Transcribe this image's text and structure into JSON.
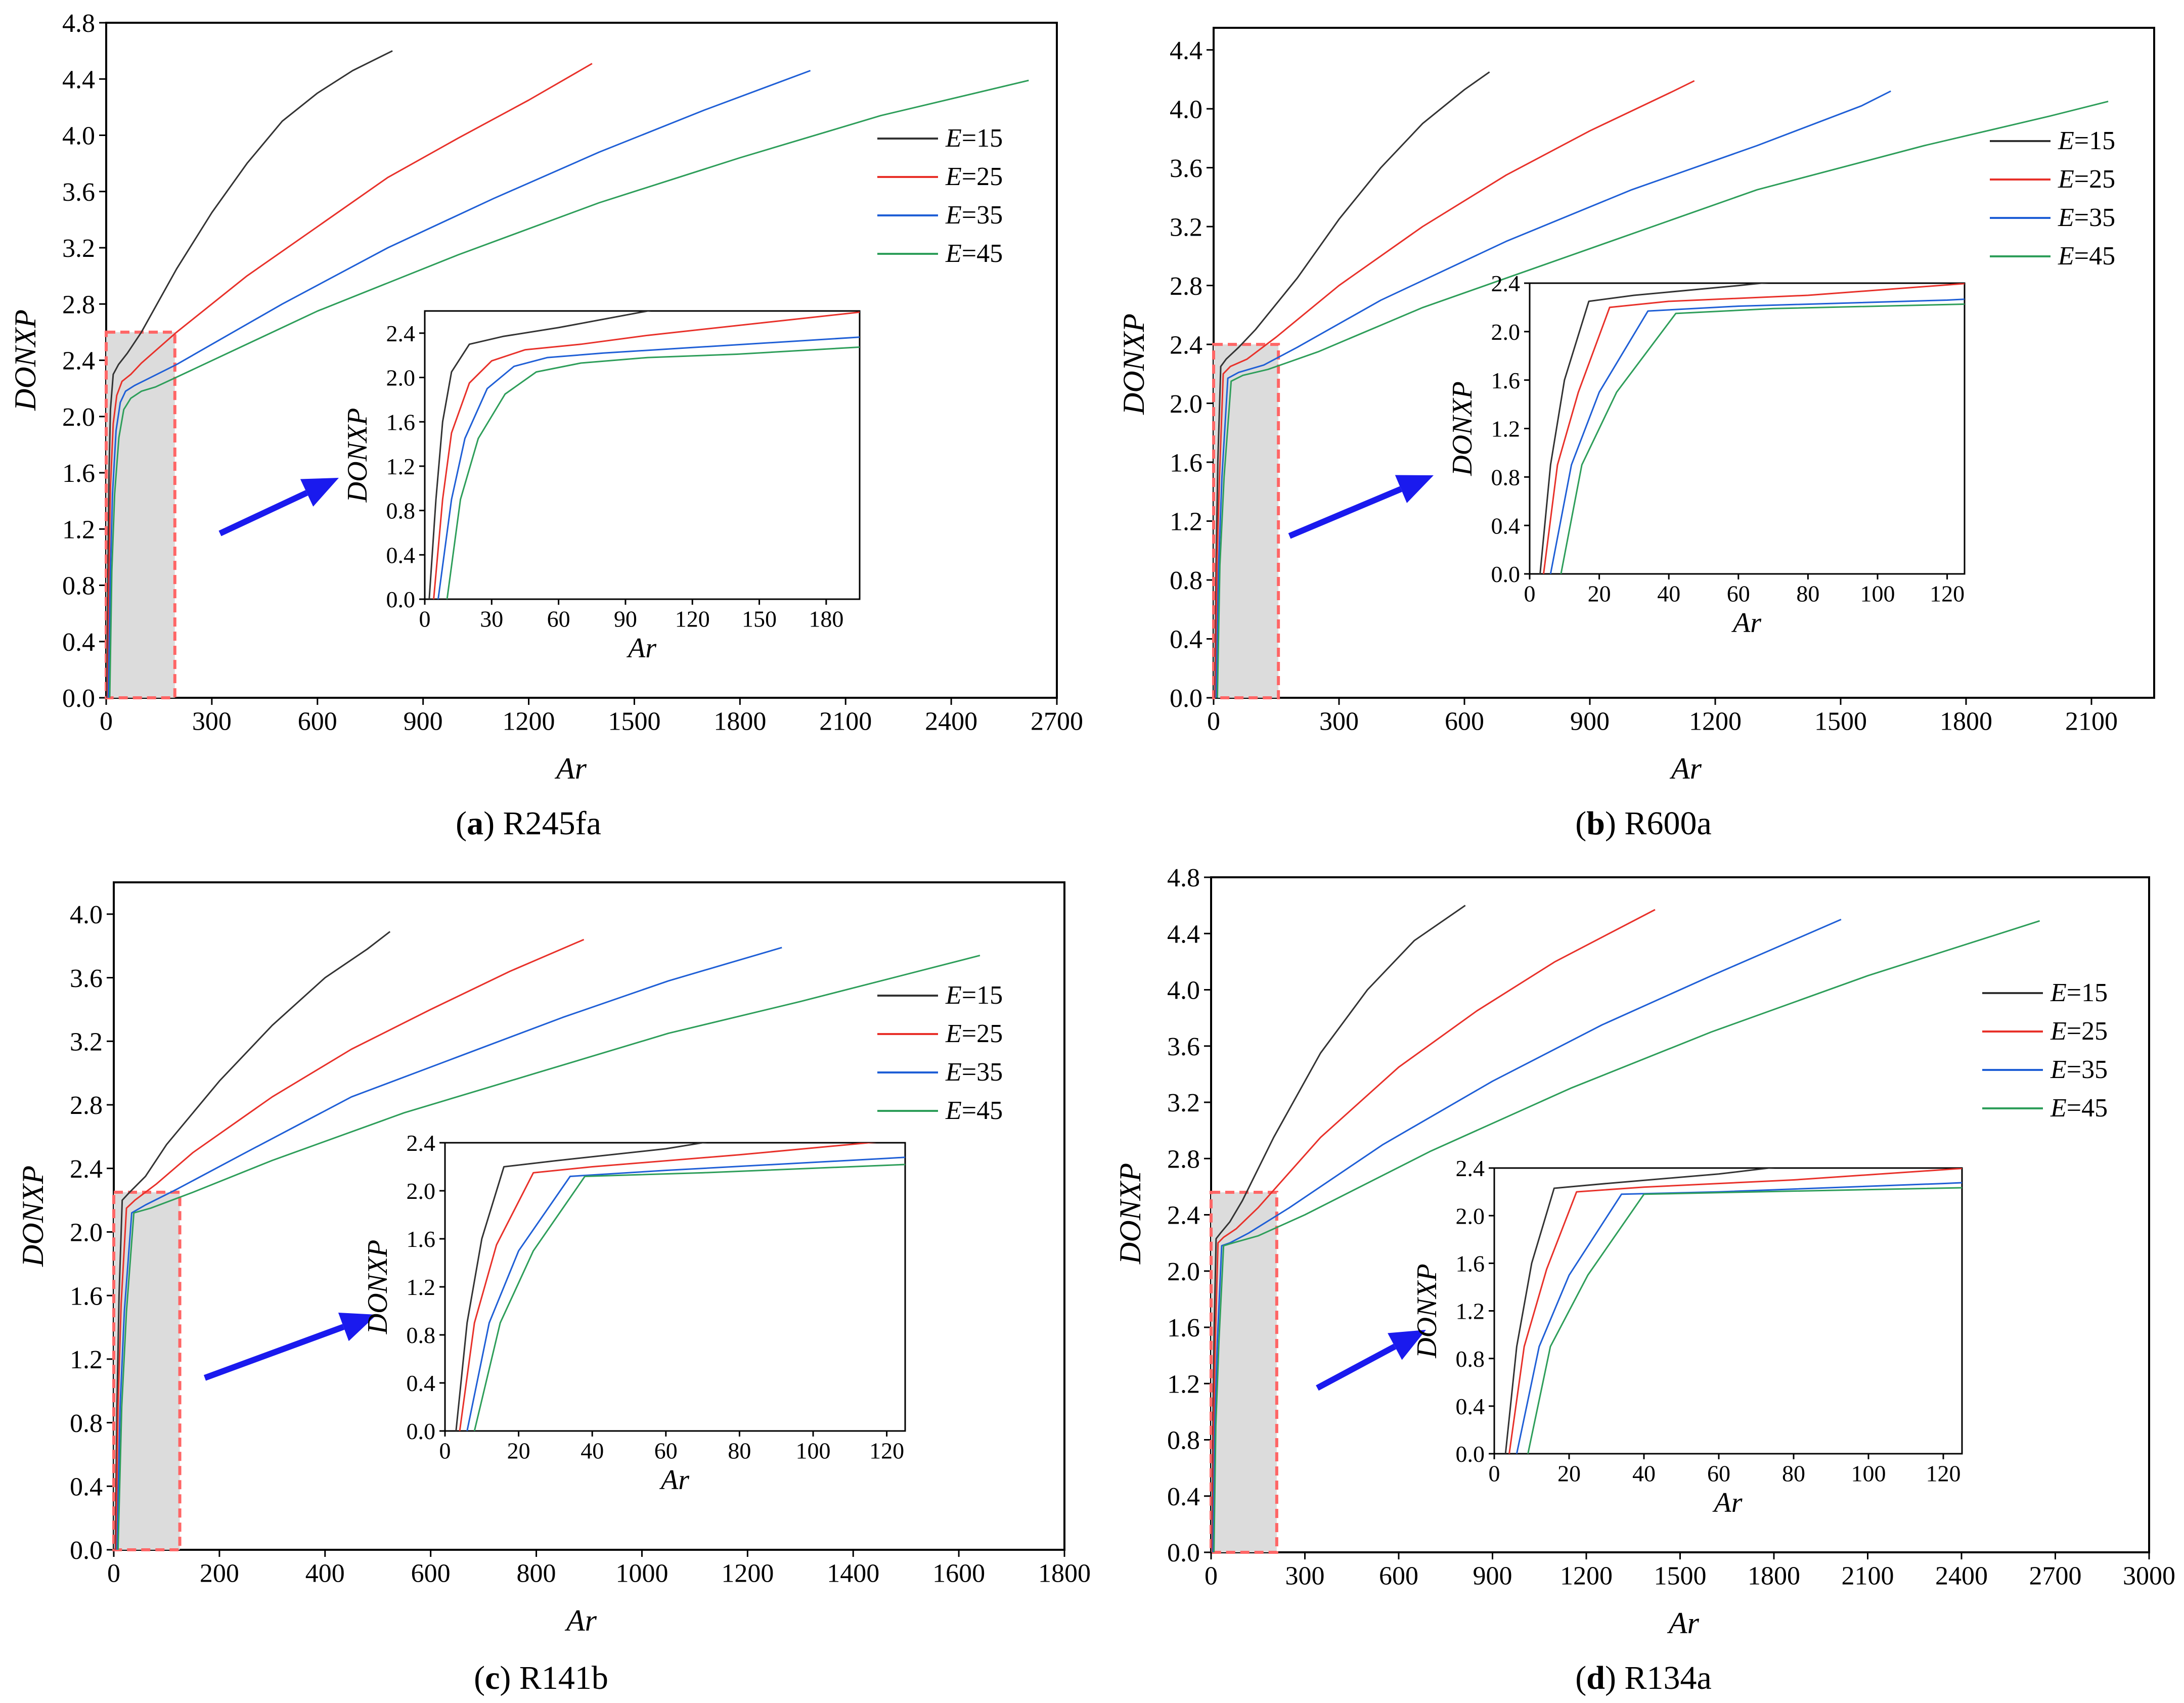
{
  "figure": {
    "series_colors": [
      "#333333",
      "#e8312a",
      "#1f5fd6",
      "#2e9e5a"
    ],
    "arrow_color": "#1a1aee",
    "zoom_fill": "#dcdcdc",
    "zoom_stroke": "#ff6666"
  },
  "chart_data": [
    {
      "id": "a",
      "type": "line",
      "caption_letter": "a",
      "caption_text": " R245fa",
      "xlabel": "Ar",
      "ylabel": "DONXP",
      "xlim": [
        0,
        2700
      ],
      "ylim": [
        0,
        4.8
      ],
      "xticks": [
        "0",
        "300",
        "600",
        "900",
        "1200",
        "1500",
        "1800",
        "2100",
        "2400",
        "2700"
      ],
      "yticks": [
        "0.0",
        "0.4",
        "0.8",
        "1.2",
        "1.6",
        "2.0",
        "2.4",
        "2.8",
        "3.2",
        "3.6",
        "4.0",
        "4.4",
        "4.8"
      ],
      "zoom_region": {
        "x": [
          0,
          195
        ],
        "y": [
          0,
          2.6
        ]
      },
      "legend": [
        {
          "prefix": "E",
          "label": "=15"
        },
        {
          "prefix": "E",
          "label": "=25"
        },
        {
          "prefix": "E",
          "label": "=35"
        },
        {
          "prefix": "E",
          "label": "=45"
        }
      ],
      "series": [
        {
          "name": "E=15",
          "x": [
            2,
            5,
            8,
            12,
            20,
            35,
            60,
            100,
            200,
            300,
            400,
            500,
            600,
            700,
            813
          ],
          "y": [
            0.0,
            0.9,
            1.6,
            2.05,
            2.3,
            2.37,
            2.45,
            2.6,
            3.05,
            3.45,
            3.8,
            4.1,
            4.3,
            4.46,
            4.6
          ]
        },
        {
          "name": "E=25",
          "x": [
            4,
            8,
            12,
            20,
            30,
            45,
            70,
            100,
            200,
            400,
            600,
            800,
            1000,
            1200,
            1380
          ],
          "y": [
            0.0,
            0.9,
            1.5,
            1.95,
            2.15,
            2.25,
            2.3,
            2.38,
            2.6,
            3.0,
            3.35,
            3.7,
            3.98,
            4.25,
            4.51
          ]
        },
        {
          "name": "E=35",
          "x": [
            6,
            12,
            18,
            28,
            40,
            55,
            80,
            120,
            200,
            500,
            800,
            1100,
            1400,
            1700,
            2000
          ],
          "y": [
            0.0,
            0.9,
            1.45,
            1.9,
            2.1,
            2.18,
            2.22,
            2.27,
            2.37,
            2.8,
            3.2,
            3.55,
            3.88,
            4.18,
            4.46
          ]
        },
        {
          "name": "E=45",
          "x": [
            10,
            16,
            24,
            36,
            50,
            70,
            100,
            140,
            200,
            600,
            1000,
            1400,
            1800,
            2200,
            2620
          ],
          "y": [
            0.0,
            0.9,
            1.45,
            1.85,
            2.05,
            2.13,
            2.18,
            2.21,
            2.28,
            2.75,
            3.15,
            3.52,
            3.84,
            4.14,
            4.39
          ]
        }
      ],
      "inset": {
        "xlim": [
          0,
          195
        ],
        "ylim": [
          0,
          2.6
        ],
        "xticks": [
          "0",
          "30",
          "60",
          "90",
          "120",
          "150",
          "180"
        ],
        "yticks": [
          "0.0",
          "0.4",
          "0.8",
          "1.2",
          "1.6",
          "2.0",
          "2.4"
        ],
        "xlabel": "Ar",
        "ylabel": "DONXP"
      }
    },
    {
      "id": "b",
      "type": "line",
      "caption_letter": "b",
      "caption_text": " R600a",
      "xlabel": "Ar",
      "ylabel": "DONXP",
      "xlim": [
        0,
        2250
      ],
      "ylim": [
        0,
        4.55
      ],
      "xticks": [
        "0",
        "300",
        "600",
        "900",
        "1200",
        "1500",
        "1800",
        "2100"
      ],
      "yticks": [
        "0.0",
        "0.4",
        "0.8",
        "1.2",
        "1.6",
        "2.0",
        "2.4",
        "2.8",
        "3.2",
        "3.6",
        "4.0",
        "4.4"
      ],
      "zoom_region": {
        "x": [
          0,
          155
        ],
        "y": [
          0,
          2.4
        ]
      },
      "legend": [
        {
          "prefix": "E",
          "label": "=15"
        },
        {
          "prefix": "E",
          "label": "=25"
        },
        {
          "prefix": "E",
          "label": "=35"
        },
        {
          "prefix": "E",
          "label": "=45"
        }
      ],
      "series": [
        {
          "name": "E=15",
          "x": [
            3,
            6,
            10,
            17,
            30,
            60,
            100,
            200,
            300,
            400,
            500,
            600,
            660
          ],
          "y": [
            0.0,
            0.9,
            1.6,
            2.25,
            2.3,
            2.38,
            2.5,
            2.85,
            3.25,
            3.6,
            3.9,
            4.13,
            4.25
          ]
        },
        {
          "name": "E=25",
          "x": [
            4,
            8,
            14,
            23,
            40,
            80,
            150,
            300,
            500,
            700,
            900,
            1100,
            1150
          ],
          "y": [
            0.0,
            0.9,
            1.5,
            2.2,
            2.25,
            2.3,
            2.45,
            2.8,
            3.2,
            3.55,
            3.85,
            4.12,
            4.19
          ]
        },
        {
          "name": "E=35",
          "x": [
            6,
            12,
            20,
            34,
            60,
            120,
            200,
            400,
            700,
            1000,
            1300,
            1550,
            1620
          ],
          "y": [
            0.0,
            0.9,
            1.5,
            2.17,
            2.21,
            2.26,
            2.38,
            2.7,
            3.1,
            3.45,
            3.75,
            4.02,
            4.12
          ]
        },
        {
          "name": "E=45",
          "x": [
            9,
            15,
            25,
            42,
            70,
            130,
            250,
            500,
            900,
            1300,
            1700,
            2000,
            2140
          ],
          "y": [
            0.0,
            0.9,
            1.5,
            2.15,
            2.19,
            2.23,
            2.35,
            2.65,
            3.05,
            3.45,
            3.75,
            3.95,
            4.05
          ]
        }
      ],
      "inset": {
        "xlim": [
          0,
          125
        ],
        "ylim": [
          0,
          2.4
        ],
        "xticks": [
          "0",
          "20",
          "40",
          "60",
          "80",
          "100",
          "120"
        ],
        "yticks": [
          "0.0",
          "0.4",
          "0.8",
          "1.2",
          "1.6",
          "2.0",
          "2.4"
        ],
        "xlabel": "Ar",
        "ylabel": "DONXP"
      }
    },
    {
      "id": "c",
      "type": "line",
      "caption_letter": "c",
      "caption_text": " R141b",
      "xlabel": "Ar",
      "ylabel": "DONXP",
      "xlim": [
        0,
        1800
      ],
      "ylim": [
        0,
        4.2
      ],
      "xticks": [
        "0",
        "200",
        "400",
        "600",
        "800",
        "1000",
        "1200",
        "1400",
        "1600",
        "1800"
      ],
      "yticks": [
        "0.0",
        "0.4",
        "0.8",
        "1.2",
        "1.6",
        "2.0",
        "2.4",
        "2.8",
        "3.2",
        "3.6",
        "4.0"
      ],
      "zoom_region": {
        "x": [
          0,
          125
        ],
        "y": [
          0,
          2.25
        ]
      },
      "legend": [
        {
          "prefix": "E",
          "label": "=15"
        },
        {
          "prefix": "E",
          "label": "=25"
        },
        {
          "prefix": "E",
          "label": "=35"
        },
        {
          "prefix": "E",
          "label": "=45"
        }
      ],
      "series": [
        {
          "name": "E=15",
          "x": [
            3,
            6,
            10,
            16,
            30,
            60,
            100,
            200,
            300,
            400,
            480,
            523
          ],
          "y": [
            0.0,
            0.9,
            1.6,
            2.2,
            2.25,
            2.35,
            2.55,
            2.95,
            3.3,
            3.6,
            3.78,
            3.89
          ]
        },
        {
          "name": "E=25",
          "x": [
            4,
            8,
            14,
            24,
            40,
            80,
            150,
            300,
            450,
            600,
            750,
            890
          ],
          "y": [
            0.0,
            0.9,
            1.55,
            2.15,
            2.2,
            2.3,
            2.5,
            2.85,
            3.15,
            3.4,
            3.64,
            3.84
          ]
        },
        {
          "name": "E=35",
          "x": [
            6,
            12,
            20,
            34,
            60,
            120,
            250,
            450,
            650,
            850,
            1050,
            1265
          ],
          "y": [
            0.0,
            0.9,
            1.5,
            2.12,
            2.17,
            2.27,
            2.5,
            2.85,
            3.1,
            3.35,
            3.58,
            3.79
          ]
        },
        {
          "name": "E=45",
          "x": [
            8,
            15,
            24,
            38,
            70,
            150,
            300,
            550,
            800,
            1050,
            1300,
            1640
          ],
          "y": [
            0.0,
            0.9,
            1.5,
            2.12,
            2.15,
            2.25,
            2.45,
            2.75,
            3.0,
            3.25,
            3.45,
            3.74
          ]
        }
      ],
      "inset": {
        "xlim": [
          0,
          125
        ],
        "ylim": [
          0,
          2.4
        ],
        "xticks": [
          "0",
          "20",
          "40",
          "60",
          "80",
          "100",
          "120"
        ],
        "yticks": [
          "0.0",
          "0.4",
          "0.8",
          "1.2",
          "1.6",
          "2.0",
          "2.4"
        ],
        "xlabel": "Ar",
        "ylabel": "DONXP"
      }
    },
    {
      "id": "d",
      "type": "line",
      "caption_letter": "d",
      "caption_text": " R134a",
      "xlabel": "Ar",
      "ylabel": "DONXP",
      "xlim": [
        0,
        3000
      ],
      "ylim": [
        0,
        4.8
      ],
      "xticks": [
        "0",
        "300",
        "600",
        "900",
        "1200",
        "1500",
        "1800",
        "2100",
        "2400",
        "2700",
        "3000"
      ],
      "yticks": [
        "0.0",
        "0.4",
        "0.8",
        "1.2",
        "1.6",
        "2.0",
        "2.4",
        "2.8",
        "3.2",
        "3.6",
        "4.0",
        "4.4",
        "4.8"
      ],
      "zoom_region": {
        "x": [
          0,
          210
        ],
        "y": [
          0,
          2.56
        ]
      },
      "legend": [
        {
          "prefix": "E",
          "label": "=15"
        },
        {
          "prefix": "E",
          "label": "=25"
        },
        {
          "prefix": "E",
          "label": "=35"
        },
        {
          "prefix": "E",
          "label": "=45"
        }
      ],
      "series": [
        {
          "name": "E=15",
          "x": [
            3,
            6,
            10,
            16,
            30,
            60,
            100,
            200,
            350,
            500,
            650,
            813
          ],
          "y": [
            0.0,
            0.9,
            1.6,
            2.23,
            2.27,
            2.35,
            2.5,
            2.95,
            3.55,
            4.0,
            4.35,
            4.6
          ]
        },
        {
          "name": "E=25",
          "x": [
            4,
            8,
            14,
            22,
            40,
            80,
            150,
            350,
            600,
            850,
            1100,
            1420
          ],
          "y": [
            0.0,
            0.9,
            1.55,
            2.2,
            2.24,
            2.3,
            2.45,
            2.95,
            3.45,
            3.85,
            4.2,
            4.57
          ]
        },
        {
          "name": "E=35",
          "x": [
            6,
            12,
            20,
            34,
            60,
            120,
            250,
            550,
            900,
            1250,
            1600,
            2015
          ],
          "y": [
            0.0,
            0.9,
            1.5,
            2.18,
            2.2,
            2.27,
            2.45,
            2.9,
            3.35,
            3.75,
            4.1,
            4.5
          ]
        },
        {
          "name": "E=45",
          "x": [
            9,
            15,
            25,
            40,
            70,
            150,
            300,
            700,
            1150,
            1600,
            2100,
            2650
          ],
          "y": [
            0.0,
            0.9,
            1.5,
            2.18,
            2.2,
            2.25,
            2.4,
            2.85,
            3.3,
            3.7,
            4.1,
            4.49
          ]
        }
      ],
      "inset": {
        "xlim": [
          0,
          125
        ],
        "ylim": [
          0,
          2.4
        ],
        "xticks": [
          "0",
          "20",
          "40",
          "60",
          "80",
          "100",
          "120"
        ],
        "yticks": [
          "0.0",
          "0.4",
          "0.8",
          "1.2",
          "1.6",
          "2.0",
          "2.4"
        ],
        "xlabel": "Ar",
        "ylabel": "DONXP"
      }
    }
  ]
}
